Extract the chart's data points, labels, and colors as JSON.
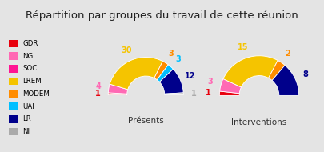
{
  "title": "Répartition par groupes du travail de cette réunion",
  "title_fontsize": 9.5,
  "background_color": "#e4e4e4",
  "legend_bg": "#f8f8f8",
  "groups": [
    "GDR",
    "NG",
    "SOC",
    "LREM",
    "MODEM",
    "UAI",
    "LR",
    "NI"
  ],
  "colors": [
    "#e8000d",
    "#ff69b4",
    "#ff1493",
    "#f5c400",
    "#ff8c00",
    "#00bfff",
    "#00008b",
    "#aaaaaa"
  ],
  "presentsValues": [
    1,
    4,
    0,
    30,
    3,
    3,
    12,
    1
  ],
  "interventionsValues": [
    1,
    3,
    0,
    15,
    2,
    0,
    8,
    0
  ],
  "chart1_label": "Présents",
  "chart2_label": "Interventions",
  "outer_r": 1.0,
  "inner_r": 0.5
}
